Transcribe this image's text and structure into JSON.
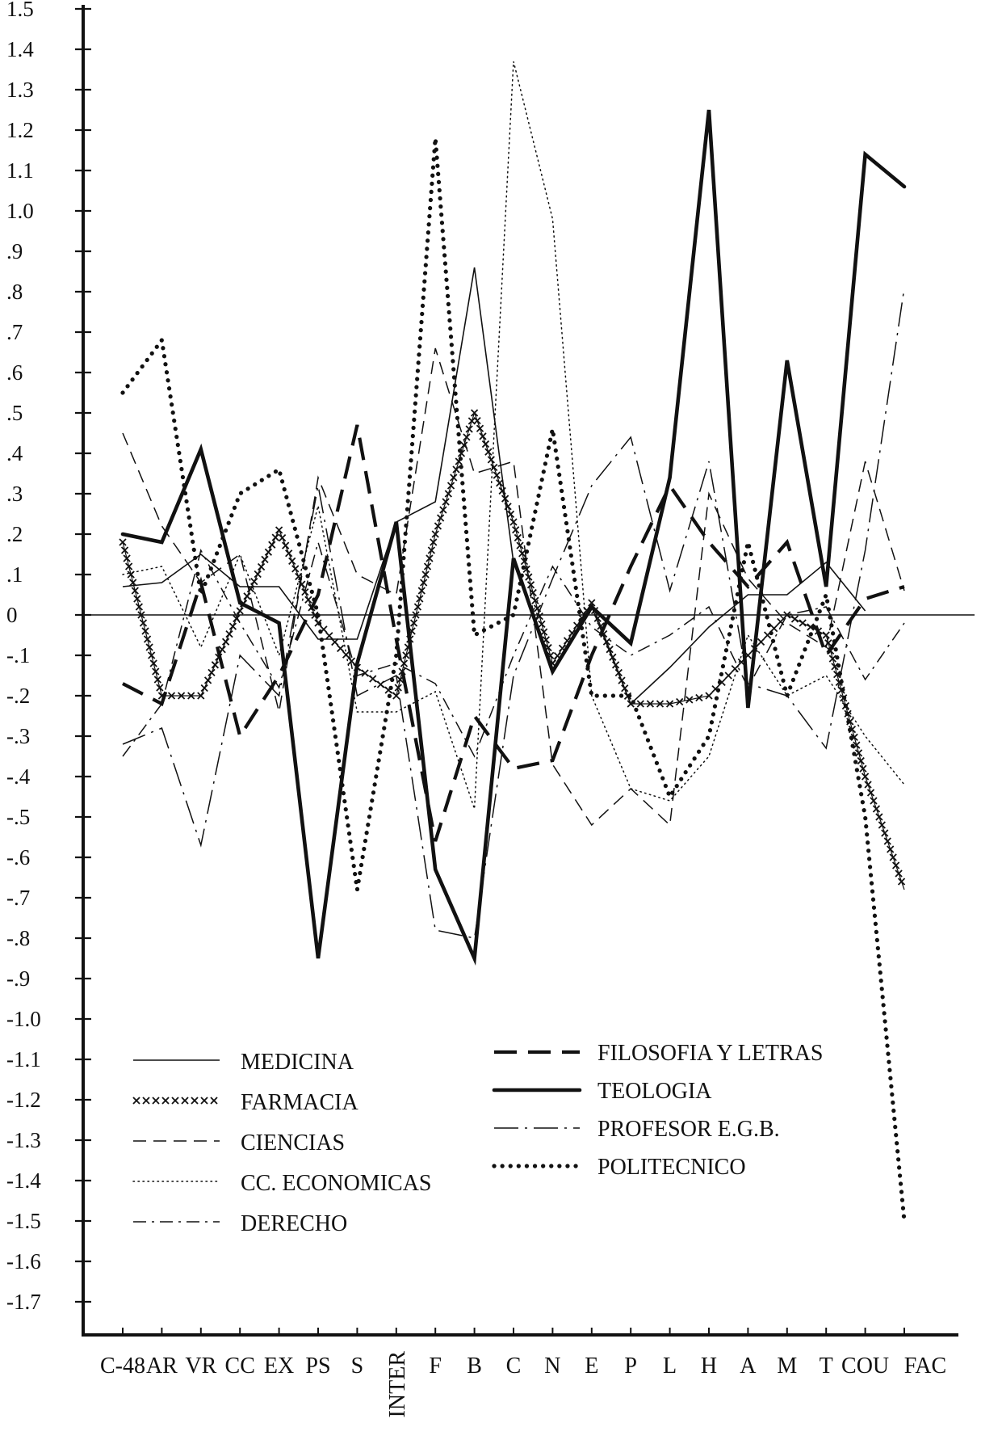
{
  "chart_data": {
    "type": "line",
    "title": "",
    "xlabel": "",
    "ylabel": "",
    "categories": [
      "C-48",
      "AR",
      "VR",
      "CC",
      "EX",
      "PS",
      "S",
      "INTER",
      "F",
      "B",
      "C",
      "N",
      "E",
      "P",
      "L",
      "H",
      "A",
      "M",
      "T",
      "COU",
      "FAC"
    ],
    "ylim": [
      -1.7,
      1.5
    ],
    "y_ticks": [
      "1.5",
      "1.4",
      "1.3",
      "1.2",
      "1.1",
      "1.0",
      ".9",
      ".8",
      ".7",
      ".6",
      ".5",
      ".4",
      ".3",
      ".2",
      ".1",
      "0",
      "-.1",
      "-.2",
      "-.3",
      "-.4",
      "-.5",
      "-.6",
      "-.7",
      "-.8",
      "-.9",
      "-1.0",
      "-1.1",
      "-1.2",
      "-1.3",
      "-1.4",
      "-1.5",
      "-1.6",
      "-1.7"
    ],
    "grid": false,
    "zero_line": true,
    "legend_position": "bottom-left",
    "series": [
      {
        "name": "MEDICINA",
        "style": "thin-solid",
        "values": [
          0.07,
          0.08,
          0.15,
          0.07,
          0.07,
          -0.06,
          -0.06,
          0.23,
          0.28,
          0.86,
          0.13,
          -0.14,
          0.02,
          -0.22,
          -0.13,
          -0.03,
          0.05,
          0.05,
          0.13,
          0.01,
          null
        ]
      },
      {
        "name": "FARMACIA",
        "style": "crosses",
        "values": [
          0.18,
          -0.2,
          -0.2,
          0.01,
          0.21,
          -0.02,
          -0.13,
          -0.2,
          0.2,
          0.5,
          0.23,
          -0.12,
          0.03,
          -0.22,
          -0.22,
          -0.2,
          -0.1,
          0.0,
          -0.05,
          -0.4,
          -0.68
        ]
      },
      {
        "name": "CIENCIAS",
        "style": "thin-dashed",
        "values": [
          0.45,
          0.22,
          0.08,
          0.15,
          -0.24,
          0.34,
          0.1,
          0.05,
          0.66,
          0.35,
          0.38,
          -0.37,
          -0.52,
          -0.43,
          -0.52,
          0.3,
          0.09,
          -0.02,
          -0.08,
          0.38,
          0.06
        ]
      },
      {
        "name": "CC. ECONOMICAS",
        "style": "dotted",
        "values": [
          0.1,
          0.12,
          -0.08,
          0.15,
          -0.1,
          0.27,
          -0.24,
          -0.24,
          -0.19,
          -0.48,
          1.37,
          0.98,
          -0.2,
          -0.43,
          -0.46,
          -0.35,
          -0.05,
          -0.2,
          -0.15,
          -0.3,
          -0.42
        ]
      },
      {
        "name": "DERECHO",
        "style": "dash-dot",
        "values": [
          -0.35,
          -0.22,
          0.16,
          -0.02,
          -0.18,
          0.18,
          -0.15,
          -0.12,
          -0.17,
          -0.35,
          -0.1,
          0.12,
          -0.03,
          -0.1,
          -0.05,
          0.02,
          -0.18,
          0.0,
          0.02,
          -0.16,
          -0.02
        ]
      },
      {
        "name": "FILOSOFIA Y LETRAS",
        "style": "thick-dashed",
        "values": [
          -0.17,
          -0.22,
          0.08,
          -0.3,
          -0.15,
          0.05,
          0.47,
          -0.06,
          -0.56,
          -0.25,
          -0.38,
          -0.36,
          -0.1,
          0.12,
          0.32,
          0.18,
          0.07,
          0.18,
          -0.1,
          0.04,
          0.07
        ]
      },
      {
        "name": "TEOLOGIA",
        "style": "thick-solid",
        "values": [
          0.2,
          0.18,
          0.41,
          0.03,
          -0.02,
          -0.85,
          -0.12,
          0.23,
          -0.63,
          -0.85,
          0.14,
          -0.14,
          0.02,
          -0.07,
          0.34,
          1.25,
          -0.23,
          0.63,
          0.07,
          1.14,
          1.06
        ]
      },
      {
        "name": "PROFESOR E.G.B.",
        "style": "long-dash-dot",
        "values": [
          -0.32,
          -0.28,
          -0.57,
          -0.1,
          -0.2,
          0.32,
          -0.2,
          -0.15,
          -0.78,
          -0.8,
          -0.15,
          0.09,
          0.32,
          0.44,
          0.06,
          0.38,
          -0.17,
          -0.2,
          -0.33,
          0.16,
          0.81
        ]
      },
      {
        "name": "POLITECNICO",
        "style": "thick-dotted",
        "values": [
          0.55,
          0.68,
          0.05,
          0.3,
          0.36,
          0.0,
          -0.68,
          -0.1,
          1.18,
          -0.05,
          0.0,
          0.46,
          -0.2,
          -0.2,
          -0.45,
          -0.3,
          0.18,
          -0.2,
          0.05,
          -0.5,
          -1.5
        ]
      }
    ]
  }
}
